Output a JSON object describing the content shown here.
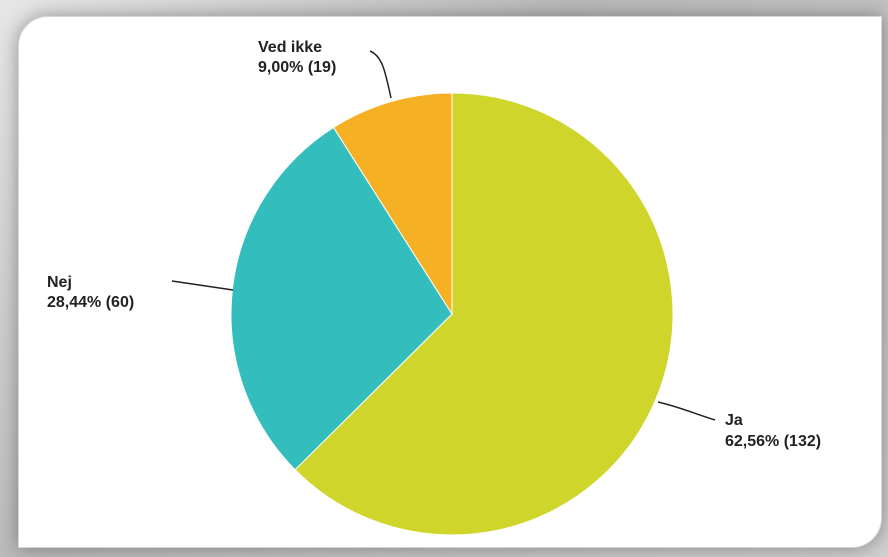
{
  "chart_data": {
    "type": "pie",
    "title": "",
    "slices": [
      {
        "name": "Ja",
        "percent_label": "62,56% (132)",
        "value": 132,
        "percent": 62.56,
        "color": "#cfd52b"
      },
      {
        "name": "Nej",
        "percent_label": "28,44% (60)",
        "value": 60,
        "percent": 28.44,
        "color": "#33bdbd"
      },
      {
        "name": "Ved ikke",
        "percent_label": "9,00% (19)",
        "value": 19,
        "percent": 9.0,
        "color": "#f6b023"
      }
    ],
    "legend": "none",
    "labels": "outside with leader lines"
  }
}
